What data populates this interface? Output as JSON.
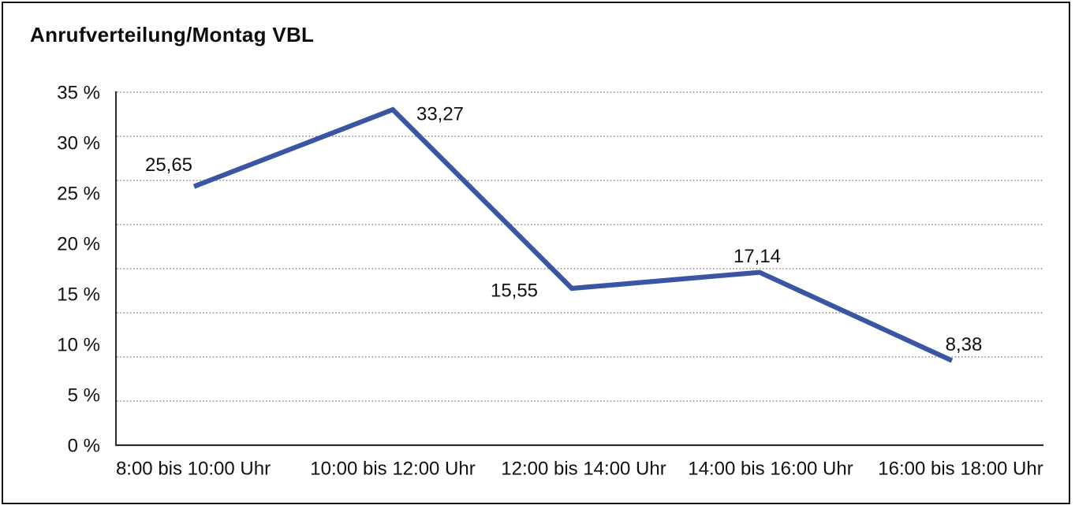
{
  "chart": {
    "title": "Anrufverteilung/Montag VBL"
  },
  "chart_data": {
    "type": "line",
    "title": "Anrufverteilung/Montag VBL",
    "categories": [
      "8:00 bis 10:00 Uhr",
      "10:00 bis 12:00 Uhr",
      "12:00 bis 14:00 Uhr",
      "14:00 bis 16:00 Uhr",
      "16:00 bis 18:00 Uhr"
    ],
    "series": [
      {
        "name": "Anrufverteilung Montag VBL",
        "values": [
          25.65,
          33.27,
          15.55,
          17.14,
          8.38
        ],
        "data_labels": [
          "25,65",
          "33,27",
          "15,55",
          "17,14",
          "8,38"
        ],
        "color": "#3a55a3"
      }
    ],
    "y_ticks": [
      "35 %",
      "30 %",
      "25 %",
      "20 %",
      "15 %",
      "10 %",
      "5 %",
      "0 %"
    ],
    "y_tick_values": [
      35,
      30,
      25,
      20,
      15,
      10,
      5,
      0
    ],
    "ylim": [
      0,
      35
    ],
    "xlabel": "",
    "ylabel": "",
    "grid": "horizontal-dotted",
    "legend": "none",
    "colors": {
      "line": "#3a55a3",
      "grid": "#8a8a8a",
      "axis": "#2b2b2b",
      "text": "#111111",
      "background": "#ffffff",
      "frame_border": "#161616"
    }
  }
}
